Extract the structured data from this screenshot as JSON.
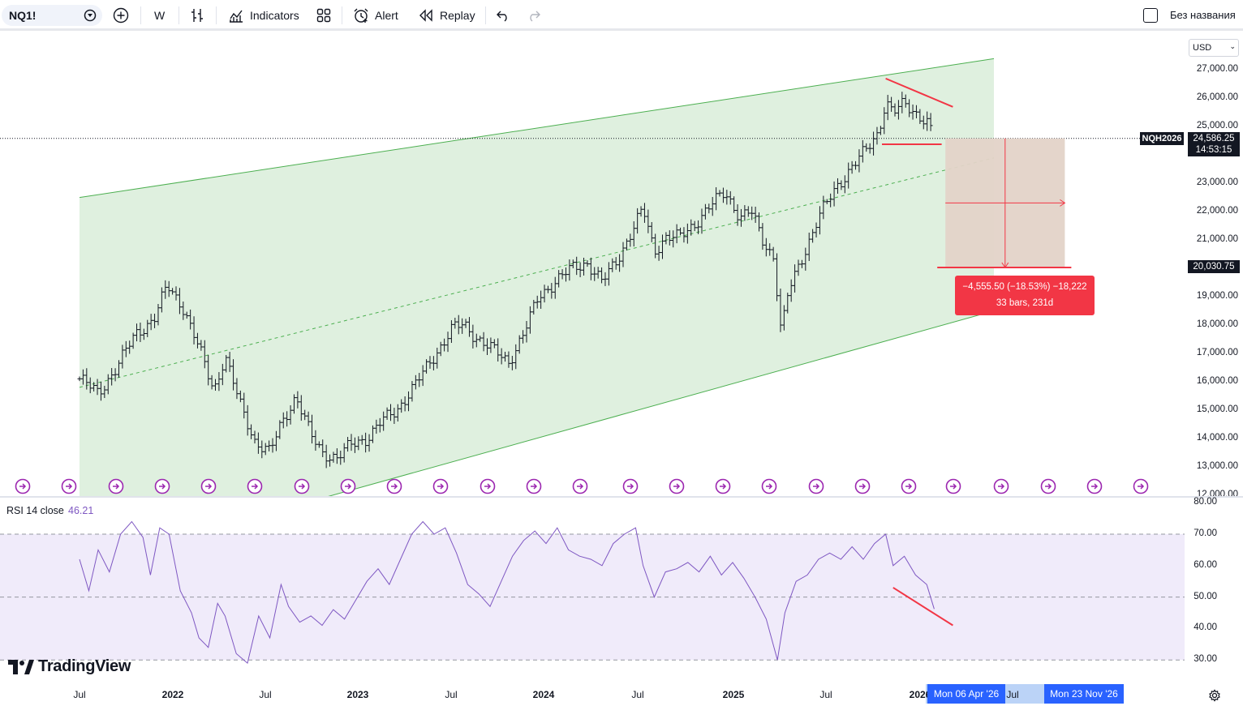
{
  "toolbar": {
    "symbol": "NQ1!",
    "interval": "W",
    "indicators_label": "Indicators",
    "alert_label": "Alert",
    "replay_label": "Replay",
    "layout_name": "Без названия"
  },
  "price_scale": {
    "currency": "USD",
    "labels": [
      "27,000.00",
      "26,000.00",
      "25,000.00",
      "23,000.00",
      "22,000.00",
      "21,000.00",
      "19,000.00",
      "18,000.00",
      "17,000.00",
      "16,000.00",
      "15,000.00",
      "14,000.00",
      "13,000.00",
      "12,000.00"
    ],
    "symbol_tag": "NQH2026",
    "last_price": "24,586.25",
    "countdown": "14:53:15",
    "target_price": "20,030.75"
  },
  "measure": {
    "line1": "−4,555.50 (−18.53%) −18,222",
    "line2": "33 bars, 231d"
  },
  "rsi": {
    "title": "RSI 14 close",
    "value": "46.21",
    "labels": [
      "80.00",
      "70.00",
      "60.00",
      "50.00",
      "40.00",
      "30.00"
    ]
  },
  "time_axis": {
    "labels": [
      "Jul",
      "2022",
      "Jul",
      "2023",
      "Jul",
      "2024",
      "Jul",
      "2025",
      "Jul",
      "2026",
      "Jul"
    ],
    "range_start": "Mon 06 Apr '26",
    "range_end": "Mon 23 Nov '26"
  },
  "branding": {
    "logo_text": "TradingView"
  },
  "colors": {
    "channel_fill": "#dff0df",
    "channel_line": "#4caf50",
    "trend_red": "#f23645",
    "rsi_line": "#7e57c2",
    "rsi_band": "#f0ebfa",
    "measure_fill": "#e3d3c8",
    "time_tag": "#2962ff"
  },
  "chart_data": {
    "type": "ohlc",
    "interval": "W",
    "ylim": [
      12000,
      27400
    ],
    "weekly_close_path": [
      [
        2021.5,
        16100
      ],
      [
        2021.6,
        15600
      ],
      [
        2021.7,
        16500
      ],
      [
        2021.8,
        17700
      ],
      [
        2021.9,
        18200
      ],
      [
        2021.97,
        19400
      ],
      [
        2022.05,
        18700
      ],
      [
        2022.15,
        17000
      ],
      [
        2022.22,
        15700
      ],
      [
        2022.28,
        16900
      ],
      [
        2022.36,
        15200
      ],
      [
        2022.44,
        13900
      ],
      [
        2022.52,
        13500
      ],
      [
        2022.58,
        14500
      ],
      [
        2022.66,
        15500
      ],
      [
        2022.74,
        14100
      ],
      [
        2022.8,
        13500
      ],
      [
        2022.88,
        13300
      ],
      [
        2022.96,
        13800
      ],
      [
        2023.04,
        14000
      ],
      [
        2023.12,
        14600
      ],
      [
        2023.2,
        15000
      ],
      [
        2023.3,
        15900
      ],
      [
        2023.4,
        16900
      ],
      [
        2023.5,
        17900
      ],
      [
        2023.56,
        18000
      ],
      [
        2023.62,
        17600
      ],
      [
        2023.7,
        17200
      ],
      [
        2023.8,
        16700
      ],
      [
        2023.88,
        17700
      ],
      [
        2023.96,
        19000
      ],
      [
        2024.06,
        19600
      ],
      [
        2024.14,
        20000
      ],
      [
        2024.22,
        20200
      ],
      [
        2024.3,
        19500
      ],
      [
        2024.38,
        20300
      ],
      [
        2024.46,
        21300
      ],
      [
        2024.52,
        22100
      ],
      [
        2024.58,
        20600
      ],
      [
        2024.64,
        21100
      ],
      [
        2024.72,
        21100
      ],
      [
        2024.8,
        21600
      ],
      [
        2024.88,
        22200
      ],
      [
        2024.96,
        22700
      ],
      [
        2025.04,
        21800
      ],
      [
        2025.1,
        22000
      ],
      [
        2025.16,
        21000
      ],
      [
        2025.22,
        20400
      ],
      [
        2025.26,
        17700
      ],
      [
        2025.3,
        19200
      ],
      [
        2025.38,
        20500
      ],
      [
        2025.46,
        21800
      ],
      [
        2025.56,
        22900
      ],
      [
        2025.64,
        23600
      ],
      [
        2025.72,
        24200
      ],
      [
        2025.78,
        24800
      ],
      [
        2025.82,
        25900
      ],
      [
        2025.86,
        25500
      ],
      [
        2025.92,
        25800
      ],
      [
        2025.98,
        25500
      ],
      [
        2026.04,
        25200
      ],
      [
        2026.08,
        24586
      ]
    ],
    "channel": {
      "upper": [
        [
          2021.5,
          22500
        ],
        [
          2026.4,
          27400
        ]
      ],
      "mid": [
        [
          2021.5,
          15800
        ],
        [
          2026.4,
          23900
        ]
      ],
      "lower": [
        [
          2021.5,
          9500
        ],
        [
          2026.4,
          18500
        ]
      ]
    },
    "resistance_line": [
      [
        2025.82,
        26700
      ],
      [
        2026.18,
        25700
      ]
    ],
    "support_line": [
      [
        2025.8,
        24380
      ],
      [
        2026.12,
        24380
      ]
    ],
    "measure": {
      "from_price": 24586.25,
      "to_price": 20030.75,
      "change": -4555.5,
      "change_pct": -18.53,
      "ticks": -18222,
      "bars": 33,
      "days": 231
    },
    "rsi": {
      "period": 14,
      "ylim": [
        25,
        82
      ],
      "bands": [
        30,
        50,
        70
      ],
      "points": [
        [
          2021.5,
          62
        ],
        [
          2021.55,
          52
        ],
        [
          2021.6,
          65
        ],
        [
          2021.66,
          58
        ],
        [
          2021.72,
          70
        ],
        [
          2021.78,
          74
        ],
        [
          2021.84,
          69
        ],
        [
          2021.88,
          57
        ],
        [
          2021.93,
          72
        ],
        [
          2021.98,
          70
        ],
        [
          2022.04,
          52
        ],
        [
          2022.1,
          45
        ],
        [
          2022.14,
          37
        ],
        [
          2022.19,
          34
        ],
        [
          2022.24,
          48
        ],
        [
          2022.28,
          44
        ],
        [
          2022.34,
          32
        ],
        [
          2022.4,
          29
        ],
        [
          2022.46,
          44
        ],
        [
          2022.52,
          37
        ],
        [
          2022.58,
          54
        ],
        [
          2022.62,
          47
        ],
        [
          2022.68,
          42
        ],
        [
          2022.74,
          44
        ],
        [
          2022.8,
          41
        ],
        [
          2022.86,
          46
        ],
        [
          2022.92,
          43
        ],
        [
          2022.98,
          49
        ],
        [
          2023.04,
          55
        ],
        [
          2023.1,
          59
        ],
        [
          2023.16,
          54
        ],
        [
          2023.22,
          62
        ],
        [
          2023.28,
          70
        ],
        [
          2023.34,
          74
        ],
        [
          2023.4,
          70
        ],
        [
          2023.46,
          72
        ],
        [
          2023.52,
          64
        ],
        [
          2023.58,
          54
        ],
        [
          2023.64,
          51
        ],
        [
          2023.7,
          47
        ],
        [
          2023.76,
          55
        ],
        [
          2023.82,
          63
        ],
        [
          2023.88,
          68
        ],
        [
          2023.94,
          71
        ],
        [
          2024.0,
          67
        ],
        [
          2024.06,
          72
        ],
        [
          2024.12,
          65
        ],
        [
          2024.18,
          63
        ],
        [
          2024.24,
          62
        ],
        [
          2024.3,
          60
        ],
        [
          2024.36,
          67
        ],
        [
          2024.42,
          70
        ],
        [
          2024.48,
          72
        ],
        [
          2024.52,
          60
        ],
        [
          2024.58,
          50
        ],
        [
          2024.64,
          58
        ],
        [
          2024.7,
          59
        ],
        [
          2024.76,
          61
        ],
        [
          2024.82,
          58
        ],
        [
          2024.88,
          63
        ],
        [
          2024.94,
          57
        ],
        [
          2025.0,
          61
        ],
        [
          2025.06,
          56
        ],
        [
          2025.12,
          50
        ],
        [
          2025.18,
          43
        ],
        [
          2025.24,
          30
        ],
        [
          2025.28,
          45
        ],
        [
          2025.34,
          55
        ],
        [
          2025.4,
          57
        ],
        [
          2025.46,
          62
        ],
        [
          2025.52,
          64
        ],
        [
          2025.58,
          62
        ],
        [
          2025.64,
          66
        ],
        [
          2025.7,
          62
        ],
        [
          2025.76,
          67
        ],
        [
          2025.82,
          70
        ],
        [
          2025.86,
          60
        ],
        [
          2025.92,
          63
        ],
        [
          2025.98,
          57
        ],
        [
          2026.04,
          54
        ],
        [
          2026.08,
          46.21
        ]
      ],
      "divergence_line": [
        [
          2025.86,
          53
        ],
        [
          2026.18,
          41
        ]
      ]
    }
  }
}
